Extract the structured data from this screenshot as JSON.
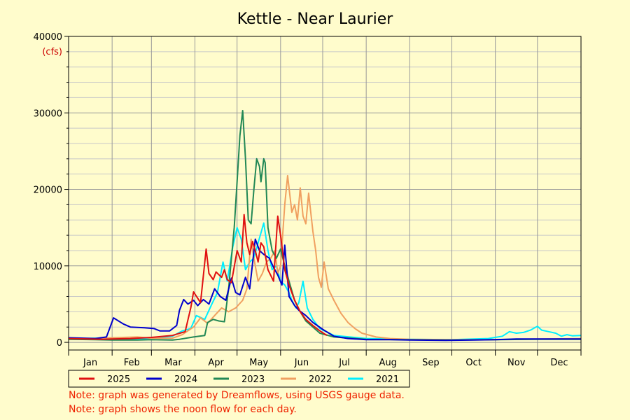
{
  "chart_data": {
    "type": "line",
    "title": "Kettle - Near Laurier",
    "ylabel": "(cfs)",
    "ylim": [
      0,
      40000
    ],
    "yticks": [
      0,
      10000,
      20000,
      30000,
      40000
    ],
    "x_unit": "day of year",
    "xlim": [
      1,
      366
    ],
    "months": [
      "Jan",
      "Feb",
      "Mar",
      "Apr",
      "May",
      "Jun",
      "Jul",
      "Aug",
      "Sep",
      "Oct",
      "Nov",
      "Dec"
    ],
    "month_starts": [
      1,
      32,
      60,
      91,
      121,
      152,
      182,
      213,
      244,
      274,
      305,
      335
    ],
    "grid": true,
    "legend_position": "bottom-left",
    "series": [
      {
        "name": "2025",
        "color": "#e01010",
        "points": [
          [
            1,
            500
          ],
          [
            15,
            450
          ],
          [
            25,
            400
          ],
          [
            32,
            450
          ],
          [
            45,
            500
          ],
          [
            60,
            650
          ],
          [
            75,
            900
          ],
          [
            84,
            1400
          ],
          [
            88,
            4500
          ],
          [
            90,
            6600
          ],
          [
            95,
            5200
          ],
          [
            99,
            12200
          ],
          [
            101,
            9000
          ],
          [
            104,
            8200
          ],
          [
            106,
            9200
          ],
          [
            110,
            8500
          ],
          [
            112,
            9500
          ],
          [
            114,
            8200
          ],
          [
            117,
            7800
          ],
          [
            121,
            12000
          ],
          [
            124,
            10500
          ],
          [
            126,
            16700
          ],
          [
            128,
            13000
          ],
          [
            130,
            11500
          ],
          [
            132,
            13200
          ],
          [
            134,
            12000
          ],
          [
            136,
            10500
          ],
          [
            138,
            13000
          ],
          [
            140,
            12500
          ],
          [
            143,
            9500
          ],
          [
            147,
            8000
          ],
          [
            150,
            16500
          ],
          [
            152,
            14000
          ],
          [
            155,
            9500
          ],
          [
            158,
            7500
          ],
          [
            162,
            5500
          ],
          [
            166,
            4000
          ],
          [
            170,
            3000
          ],
          [
            175,
            2200
          ],
          [
            180,
            1500
          ],
          [
            185,
            900
          ]
        ]
      },
      {
        "name": "2024",
        "color": "#0000cc",
        "points": [
          [
            1,
            600
          ],
          [
            20,
            500
          ],
          [
            28,
            700
          ],
          [
            33,
            3200
          ],
          [
            40,
            2400
          ],
          [
            45,
            2000
          ],
          [
            55,
            1900
          ],
          [
            62,
            1800
          ],
          [
            66,
            1500
          ],
          [
            73,
            1500
          ],
          [
            78,
            2200
          ],
          [
            80,
            4200
          ],
          [
            83,
            5600
          ],
          [
            86,
            5000
          ],
          [
            90,
            5500
          ],
          [
            93,
            4800
          ],
          [
            97,
            5600
          ],
          [
            101,
            5000
          ],
          [
            105,
            7000
          ],
          [
            109,
            6000
          ],
          [
            113,
            5500
          ],
          [
            117,
            8400
          ],
          [
            120,
            6500
          ],
          [
            123,
            6200
          ],
          [
            127,
            8500
          ],
          [
            130,
            7000
          ],
          [
            134,
            13500
          ],
          [
            137,
            12000
          ],
          [
            140,
            11500
          ],
          [
            144,
            11000
          ],
          [
            147,
            9800
          ],
          [
            150,
            8800
          ],
          [
            153,
            7500
          ],
          [
            155,
            12700
          ],
          [
            158,
            6000
          ],
          [
            162,
            4800
          ],
          [
            165,
            4200
          ],
          [
            170,
            3500
          ],
          [
            175,
            2600
          ],
          [
            182,
            1700
          ],
          [
            190,
            800
          ],
          [
            200,
            500
          ],
          [
            213,
            350
          ],
          [
            230,
            350
          ],
          [
            244,
            300
          ],
          [
            270,
            250
          ],
          [
            290,
            300
          ],
          [
            305,
            350
          ],
          [
            320,
            450
          ],
          [
            340,
            450
          ],
          [
            355,
            450
          ],
          [
            366,
            450
          ]
        ]
      },
      {
        "name": "2023",
        "color": "#228855",
        "points": [
          [
            1,
            400
          ],
          [
            20,
            350
          ],
          [
            32,
            300
          ],
          [
            50,
            300
          ],
          [
            60,
            350
          ],
          [
            75,
            300
          ],
          [
            80,
            400
          ],
          [
            90,
            700
          ],
          [
            98,
            900
          ],
          [
            100,
            2600
          ],
          [
            104,
            3000
          ],
          [
            108,
            2800
          ],
          [
            112,
            2700
          ],
          [
            115,
            7000
          ],
          [
            117,
            11000
          ],
          [
            119,
            15000
          ],
          [
            121,
            21000
          ],
          [
            123,
            27000
          ],
          [
            125,
            30300
          ],
          [
            127,
            24000
          ],
          [
            129,
            16000
          ],
          [
            131,
            15500
          ],
          [
            133,
            20000
          ],
          [
            135,
            24000
          ],
          [
            137,
            23000
          ],
          [
            138,
            21000
          ],
          [
            140,
            24000
          ],
          [
            141,
            23500
          ],
          [
            143,
            15000
          ],
          [
            146,
            12000
          ],
          [
            149,
            11000
          ],
          [
            152,
            12200
          ],
          [
            155,
            10000
          ],
          [
            158,
            8000
          ],
          [
            162,
            5500
          ],
          [
            166,
            4000
          ],
          [
            170,
            2800
          ],
          [
            175,
            2000
          ],
          [
            180,
            1200
          ],
          [
            190,
            700
          ],
          [
            213,
            400
          ],
          [
            244,
            350
          ],
          [
            274,
            300
          ],
          [
            305,
            350
          ],
          [
            335,
            400
          ],
          [
            366,
            400
          ]
        ]
      },
      {
        "name": "2022",
        "color": "#f0a060",
        "points": [
          [
            1,
            500
          ],
          [
            20,
            500
          ],
          [
            32,
            600
          ],
          [
            50,
            700
          ],
          [
            60,
            550
          ],
          [
            75,
            550
          ],
          [
            82,
            1000
          ],
          [
            90,
            2000
          ],
          [
            95,
            3200
          ],
          [
            100,
            2500
          ],
          [
            105,
            3500
          ],
          [
            110,
            4500
          ],
          [
            115,
            4000
          ],
          [
            120,
            4500
          ],
          [
            125,
            5500
          ],
          [
            128,
            7000
          ],
          [
            131,
            13500
          ],
          [
            133,
            11000
          ],
          [
            136,
            8000
          ],
          [
            139,
            9000
          ],
          [
            142,
            10500
          ],
          [
            145,
            11000
          ],
          [
            148,
            12000
          ],
          [
            150,
            9000
          ],
          [
            152,
            10000
          ],
          [
            155,
            18000
          ],
          [
            157,
            21800
          ],
          [
            160,
            17000
          ],
          [
            162,
            18000
          ],
          [
            164,
            16000
          ],
          [
            166,
            20200
          ],
          [
            168,
            16500
          ],
          [
            170,
            15500
          ],
          [
            172,
            19500
          ],
          [
            175,
            14500
          ],
          [
            177,
            12000
          ],
          [
            179,
            8500
          ],
          [
            181,
            7200
          ],
          [
            183,
            10500
          ],
          [
            186,
            7000
          ],
          [
            190,
            5500
          ],
          [
            195,
            3800
          ],
          [
            200,
            2600
          ],
          [
            205,
            1800
          ],
          [
            210,
            1200
          ],
          [
            220,
            700
          ],
          [
            230,
            500
          ],
          [
            244,
            400
          ],
          [
            274,
            350
          ],
          [
            300,
            350
          ],
          [
            320,
            400
          ],
          [
            340,
            450
          ],
          [
            366,
            500
          ]
        ]
      },
      {
        "name": "2021",
        "color": "#00eeff",
        "points": [
          [
            1,
            450
          ],
          [
            20,
            550
          ],
          [
            32,
            500
          ],
          [
            45,
            450
          ],
          [
            60,
            550
          ],
          [
            75,
            800
          ],
          [
            82,
            1500
          ],
          [
            88,
            1800
          ],
          [
            92,
            3500
          ],
          [
            98,
            3000
          ],
          [
            103,
            5000
          ],
          [
            107,
            6500
          ],
          [
            111,
            10500
          ],
          [
            114,
            8000
          ],
          [
            118,
            12500
          ],
          [
            121,
            15000
          ],
          [
            124,
            13500
          ],
          [
            127,
            9500
          ],
          [
            130,
            10500
          ],
          [
            133,
            11000
          ],
          [
            136,
            13000
          ],
          [
            140,
            15600
          ],
          [
            143,
            12000
          ],
          [
            146,
            9500
          ],
          [
            149,
            10000
          ],
          [
            152,
            8000
          ],
          [
            155,
            7500
          ],
          [
            158,
            6500
          ],
          [
            160,
            5500
          ],
          [
            163,
            4500
          ],
          [
            165,
            5200
          ],
          [
            168,
            8000
          ],
          [
            171,
            4500
          ],
          [
            175,
            3000
          ],
          [
            180,
            1800
          ],
          [
            190,
            900
          ],
          [
            213,
            500
          ],
          [
            244,
            400
          ],
          [
            274,
            350
          ],
          [
            300,
            500
          ],
          [
            310,
            800
          ],
          [
            315,
            1400
          ],
          [
            320,
            1200
          ],
          [
            325,
            1300
          ],
          [
            330,
            1600
          ],
          [
            335,
            2100
          ],
          [
            338,
            1600
          ],
          [
            343,
            1400
          ],
          [
            348,
            1200
          ],
          [
            352,
            800
          ],
          [
            356,
            1000
          ],
          [
            360,
            850
          ],
          [
            366,
            900
          ]
        ]
      }
    ]
  },
  "notes": [
    "Note: graph was generated by Dreamflows, using USGS gauge data.",
    "Note: graph shows the noon flow for each day."
  ]
}
